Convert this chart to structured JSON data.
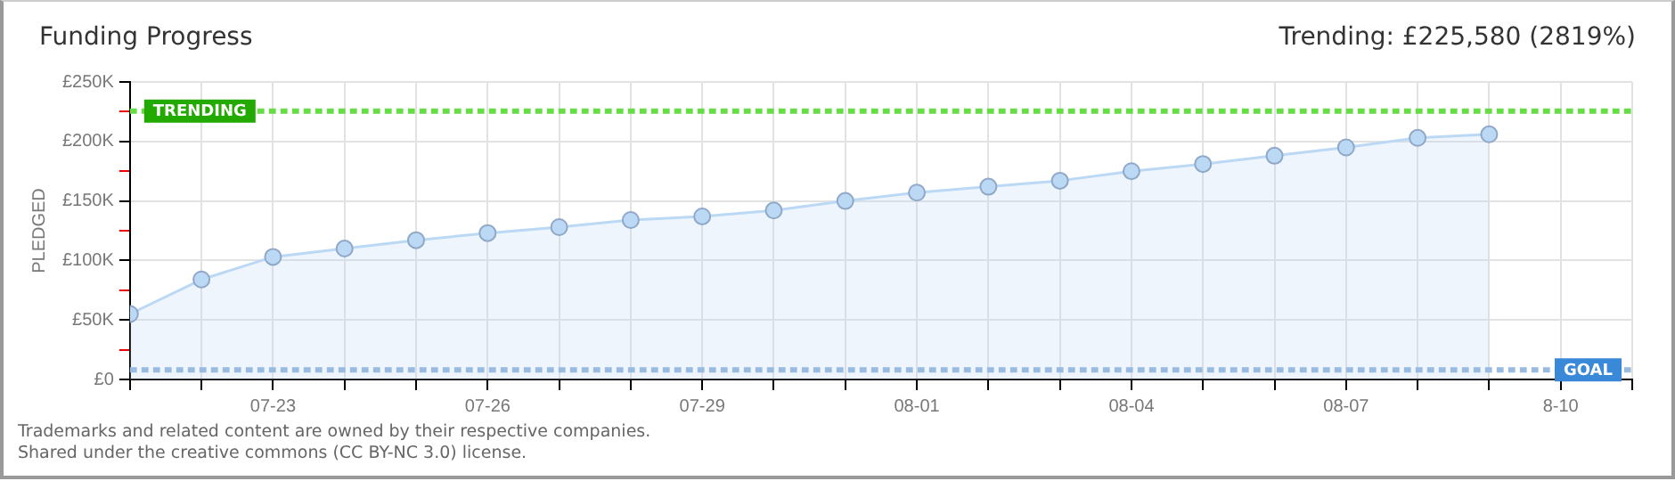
{
  "chart_data": {
    "type": "area",
    "title": "Funding Progress",
    "subtitle": "Trending: £225,580 (2819%)",
    "ylabel": "PLEDGED",
    "x": [
      "--07-21",
      "--07-22",
      "--07-23",
      "--07-24",
      "--07-25",
      "--07-26",
      "--07-27",
      "--07-28",
      "--07-29",
      "--07-30",
      "--07-31",
      "--08-01",
      "--08-02",
      "--08-03",
      "--08-04",
      "--08-05",
      "--08-06",
      "--08-07",
      "--08-08",
      "--08-09"
    ],
    "series": [
      {
        "color": "#bbd8f5",
        "values": [
          55000,
          84000,
          103000,
          110000,
          117000,
          123000,
          128000,
          134000,
          137000,
          142000,
          150000,
          157000,
          162000,
          167000,
          175000,
          181000,
          188000,
          195000,
          203000,
          206000
        ]
      }
    ],
    "xlim": [
      "--07-21",
      "--08-11"
    ],
    "xticks": [
      {
        "value": "--07-21",
        "label": null
      },
      {
        "value": "--07-22",
        "label": null
      },
      {
        "value": "--07-23",
        "label": "07-23"
      },
      {
        "value": "--07-24",
        "label": null
      },
      {
        "value": "--07-25",
        "label": null
      },
      {
        "value": "--07-26",
        "label": "07-26"
      },
      {
        "value": "--07-27",
        "label": null
      },
      {
        "value": "--07-28",
        "label": null
      },
      {
        "value": "--07-29",
        "label": "07-29"
      },
      {
        "value": "--07-30",
        "label": null
      },
      {
        "value": "--07-31",
        "label": null
      },
      {
        "value": "--08-01",
        "label": "08-01"
      },
      {
        "value": "--08-02",
        "label": null
      },
      {
        "value": "--08-03",
        "label": null
      },
      {
        "value": "--08-04",
        "label": "08-04"
      },
      {
        "value": "--08-05",
        "label": null
      },
      {
        "value": "--08-06",
        "label": null
      },
      {
        "value": "--08-07",
        "label": "08-07"
      },
      {
        "value": "--08-08",
        "label": null
      },
      {
        "value": "--08-09",
        "label": null
      },
      {
        "value": "--08-10",
        "label": "8-10"
      },
      {
        "value": "--08-11",
        "label": null
      }
    ],
    "ylim": [
      0,
      250000
    ],
    "yticks": [
      {
        "value": 0,
        "label": "£0"
      },
      {
        "value": 25000,
        "label": null
      },
      {
        "value": 50000,
        "label": "£50K"
      },
      {
        "value": 75000,
        "label": null
      },
      {
        "value": 100000,
        "label": "£100K"
      },
      {
        "value": 125000,
        "label": null
      },
      {
        "value": 150000,
        "label": "£150K"
      },
      {
        "value": 175000,
        "label": null
      },
      {
        "value": 200000,
        "label": "£200K"
      },
      {
        "value": 225000,
        "label": null
      },
      {
        "value": 250000,
        "label": "£250K"
      }
    ],
    "ref_lines": [
      {
        "axis": "y",
        "value": 225580,
        "label": "TRENDING",
        "color": "#66dd44",
        "line_style": "dotted"
      },
      {
        "axis": "y",
        "value": 8000,
        "label": "GOAL",
        "color": "#99bbe0",
        "line_style": "dotted"
      }
    ],
    "grid": true,
    "legend": false,
    "marker": "circle",
    "line_style": "solid",
    "annotations": [
      "Trademarks and related content are owned by their respective companies.",
      "Shared under the creative commons (CC BY-NC 3.0) license."
    ]
  }
}
